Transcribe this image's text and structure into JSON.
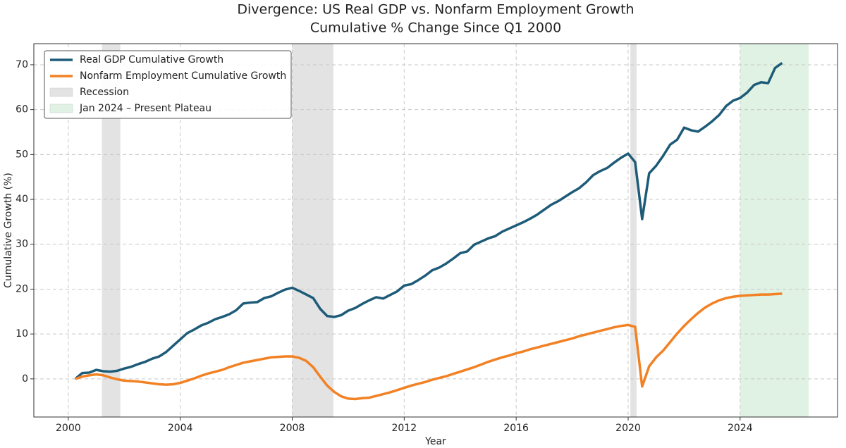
{
  "chart_data": {
    "type": "line",
    "title": "Divergence: US Real GDP vs. Nonfarm Employment Growth",
    "subtitle": "Cumulative % Change Since Q1 2000",
    "x_label": "Year",
    "y_label": "Cumulative Growth (%)",
    "x": [
      2000.25,
      2000.5,
      2000.75,
      2001,
      2001.25,
      2001.5,
      2001.75,
      2002,
      2002.25,
      2002.5,
      2002.75,
      2003,
      2003.25,
      2003.5,
      2003.75,
      2004,
      2004.25,
      2004.5,
      2004.75,
      2005,
      2005.25,
      2005.5,
      2005.75,
      2006,
      2006.25,
      2006.5,
      2006.75,
      2007,
      2007.25,
      2007.5,
      2007.75,
      2008,
      2008.25,
      2008.5,
      2008.75,
      2009,
      2009.25,
      2009.5,
      2009.75,
      2010,
      2010.25,
      2010.5,
      2010.75,
      2011,
      2011.25,
      2011.5,
      2011.75,
      2012,
      2012.25,
      2012.5,
      2012.75,
      2013,
      2013.25,
      2013.5,
      2013.75,
      2014,
      2014.25,
      2014.5,
      2014.75,
      2015,
      2015.25,
      2015.5,
      2015.75,
      2016,
      2016.25,
      2016.5,
      2016.75,
      2017,
      2017.25,
      2017.5,
      2017.75,
      2018,
      2018.25,
      2018.5,
      2018.75,
      2019,
      2019.25,
      2019.5,
      2019.75,
      2020,
      2020.25,
      2020.5,
      2020.75,
      2021,
      2021.25,
      2021.5,
      2021.75,
      2022,
      2022.25,
      2022.5,
      2022.75,
      2023,
      2023.25,
      2023.5,
      2023.75,
      2024,
      2024.25,
      2024.5,
      2024.75,
      2025,
      2025.25,
      2025.5
    ],
    "series": [
      {
        "name": "Real GDP Cumulative Growth",
        "color": "#1d5b78",
        "values": [
          0,
          1.3,
          1.4,
          2.0,
          1.7,
          1.6,
          1.8,
          2.3,
          2.7,
          3.3,
          3.8,
          4.5,
          5.0,
          6.0,
          7.4,
          8.8,
          10.2,
          11.0,
          11.9,
          12.5,
          13.3,
          13.8,
          14.4,
          15.3,
          16.8,
          17.0,
          17.1,
          18.0,
          18.4,
          19.2,
          19.9,
          20.3,
          19.6,
          18.8,
          18.0,
          15.6,
          14.0,
          13.8,
          14.2,
          15.2,
          15.8,
          16.7,
          17.5,
          18.2,
          17.9,
          18.7,
          19.5,
          20.8,
          21.1,
          22.0,
          23.0,
          24.2,
          24.8,
          25.7,
          26.8,
          28.0,
          28.4,
          29.9,
          30.6,
          31.3,
          31.8,
          32.8,
          33.5,
          34.2,
          34.9,
          35.7,
          36.6,
          37.7,
          38.8,
          39.6,
          40.6,
          41.6,
          42.5,
          43.8,
          45.4,
          46.3,
          47.0,
          48.2,
          49.3,
          50.2,
          48.3,
          35.6,
          45.8,
          47.5,
          49.7,
          52.2,
          53.3,
          56.0,
          55.4,
          55.1,
          56.2,
          57.4,
          58.8,
          60.8,
          62.0,
          62.6,
          63.8,
          65.5,
          66.1,
          65.9,
          69.3,
          70.4
        ]
      },
      {
        "name": "Nonfarm Employment Cumulative Growth",
        "color": "#f28124",
        "values": [
          0,
          0.5,
          0.8,
          1.0,
          0.8,
          0.3,
          -0.1,
          -0.4,
          -0.5,
          -0.6,
          -0.8,
          -1.0,
          -1.2,
          -1.3,
          -1.2,
          -0.9,
          -0.4,
          0.1,
          0.7,
          1.2,
          1.6,
          2.0,
          2.6,
          3.1,
          3.6,
          3.9,
          4.2,
          4.5,
          4.8,
          4.9,
          5.0,
          5.0,
          4.7,
          4.0,
          2.6,
          0.5,
          -1.5,
          -2.9,
          -3.9,
          -4.4,
          -4.5,
          -4.3,
          -4.2,
          -3.8,
          -3.4,
          -3.0,
          -2.5,
          -2.0,
          -1.5,
          -1.1,
          -0.7,
          -0.2,
          0.2,
          0.6,
          1.1,
          1.6,
          2.1,
          2.6,
          3.2,
          3.8,
          4.3,
          4.8,
          5.2,
          5.7,
          6.1,
          6.6,
          7.0,
          7.4,
          7.8,
          8.2,
          8.6,
          9.0,
          9.5,
          9.9,
          10.3,
          10.7,
          11.1,
          11.5,
          11.8,
          12.0,
          11.6,
          -1.7,
          2.8,
          4.8,
          6.3,
          8.2,
          10.1,
          11.8,
          13.3,
          14.7,
          15.9,
          16.8,
          17.5,
          18.0,
          18.3,
          18.5,
          18.6,
          18.7,
          18.8,
          18.8,
          18.9,
          19.0
        ]
      }
    ],
    "recession": {
      "label": "Recession",
      "color": "#e3e3e3",
      "spans": [
        [
          2001.2,
          2001.86
        ],
        [
          2008.0,
          2009.47
        ],
        [
          2020.08,
          2020.3
        ]
      ]
    },
    "plateau": {
      "label": "Jan 2024 – Present Plateau",
      "color": "#dff2e3",
      "span": [
        2024.0,
        2026.45
      ]
    },
    "xlim": [
      1998.77,
      2027.48
    ],
    "ylim": [
      -8.5,
      74.7
    ],
    "xticks": [
      2000,
      2004,
      2008,
      2012,
      2016,
      2020,
      2024
    ],
    "yticks": [
      0,
      10,
      20,
      30,
      40,
      50,
      60,
      70
    ],
    "grid": true,
    "legend": "upper left"
  }
}
